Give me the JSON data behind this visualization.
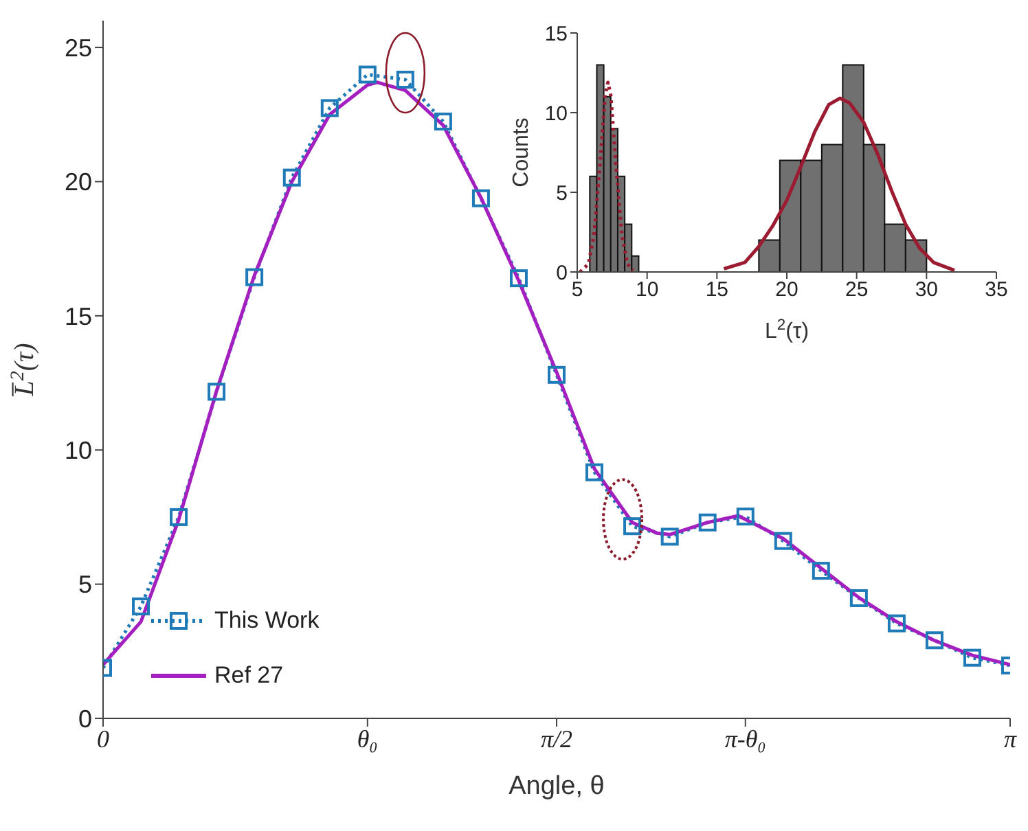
{
  "chart_data": [
    {
      "type": "line",
      "xlabel": "Angle, θ",
      "ylabel": "L̅$^{2}$(τ)",
      "xlim": [
        0,
        3.142
      ],
      "xticks": [
        0,
        {
          "value": 0.916,
          "label": "θ₀"
        },
        {
          "value": 1.571,
          "label": "π/2"
        },
        {
          "value": 2.225,
          "label": "π-θ₀"
        },
        {
          "value": 3.142,
          "label": "π"
        }
      ],
      "ylim": [
        0,
        26
      ],
      "yticks": [
        0,
        5,
        10,
        15,
        20,
        25
      ],
      "grid": false,
      "legend": "bottom left",
      "series": [
        {
          "name": "This Work",
          "color": "#1f7ab8",
          "marker": "square",
          "line_style": "dotted",
          "x": [
            0,
            0.131,
            0.262,
            0.393,
            0.524,
            0.654,
            0.785,
            0.916,
            1.047,
            1.178,
            1.309,
            1.44,
            1.571,
            1.702,
            1.833,
            1.963,
            2.094,
            2.225,
            2.356,
            2.487,
            2.618,
            2.749,
            2.88,
            3.011,
            3.142
          ],
          "values": [
            1.88,
            4.17,
            7.5,
            12.17,
            16.44,
            20.15,
            22.74,
            23.99,
            23.8,
            22.24,
            19.38,
            16.4,
            12.8,
            9.17,
            7.16,
            6.77,
            7.3,
            7.52,
            6.61,
            5.5,
            4.48,
            3.54,
            2.91,
            2.26,
            1.97
          ]
        },
        {
          "name": "Ref 27",
          "color": "#a41fbf",
          "marker": "none",
          "line_style": "solid",
          "x": [
            0,
            0.131,
            0.262,
            0.393,
            0.524,
            0.654,
            0.785,
            0.916,
            0.95,
            1.047,
            1.178,
            1.309,
            1.44,
            1.571,
            1.702,
            1.833,
            1.92,
            1.963,
            2.094,
            2.2,
            2.356,
            2.487,
            2.618,
            2.749,
            2.88,
            3.011,
            3.142
          ],
          "values": [
            2.0,
            3.6,
            7.4,
            12.2,
            16.5,
            20.0,
            22.5,
            23.6,
            23.7,
            23.4,
            22.1,
            19.4,
            16.3,
            12.9,
            9.3,
            7.3,
            6.9,
            6.85,
            7.3,
            7.55,
            6.7,
            5.6,
            4.5,
            3.6,
            2.9,
            2.35,
            2.0
          ]
        }
      ]
    },
    {
      "type": "histogram",
      "xlabel": "L$^{2}$(τ)",
      "ylabel": "Counts",
      "bins": [
        5.9,
        6.4,
        6.9,
        7.4,
        7.9,
        8.4,
        8.9,
        9.4,
        18,
        19.5,
        21,
        22.5,
        24,
        25.5,
        27,
        28.5,
        30
      ],
      "values": [
        6,
        13,
        11,
        9,
        6,
        3,
        1,
        0,
        2,
        7,
        7,
        8,
        13,
        8,
        3,
        2
      ],
      "color": "#707070",
      "xlim": [
        5,
        35
      ],
      "xticks": [
        5,
        10,
        15,
        20,
        25,
        30,
        35
      ],
      "ylim": [
        0,
        15
      ],
      "yticks": [
        0,
        5,
        10,
        15
      ],
      "grid": false,
      "series": [
        {
          "type": "line",
          "color": "#9b1b30",
          "line_style": "dotted",
          "x": [
            5.2,
            5.8,
            6.2,
            6.6,
            7.0,
            7.2,
            7.4,
            7.8,
            8.2,
            8.6,
            9.0
          ],
          "values": [
            0.0,
            0.5,
            2.3,
            6.4,
            11.1,
            11.9,
            11.1,
            6.4,
            2.3,
            0.5,
            0.1
          ]
        },
        {
          "type": "line",
          "color": "#9b1b30",
          "line_style": "solid",
          "x": [
            15.5,
            17,
            18,
            19,
            20,
            21,
            22,
            23,
            23.8,
            24.5,
            25.5,
            26.5,
            27.5,
            28.5,
            29.5,
            30.5,
            32
          ],
          "values": [
            0.2,
            0.6,
            1.6,
            2.9,
            4.5,
            6.6,
            8.8,
            10.5,
            10.9,
            10.6,
            9.4,
            7.4,
            5.1,
            3.0,
            1.5,
            0.6,
            0.1
          ]
        }
      ]
    }
  ]
}
